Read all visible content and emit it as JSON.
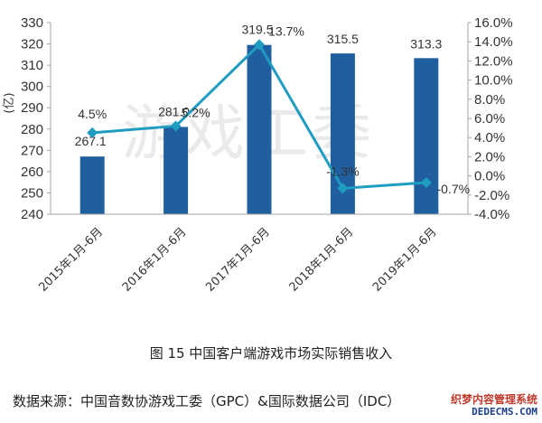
{
  "chart_data": {
    "type": "bar",
    "categories": [
      "2015年1月-6月",
      "2016年1月-6月",
      "2017年1月-6月",
      "2018年1月-6月",
      "2019年1月-6月"
    ],
    "series": [
      {
        "values": [
          267.1,
          281.0,
          319.5,
          315.5,
          313.3
        ],
        "labels": [
          "267.1",
          "281.0",
          "319.5",
          "315.5",
          "313.3"
        ],
        "axis": "left",
        "kind": "bar",
        "color": "#1f5fa0"
      },
      {
        "values": [
          4.5,
          5.2,
          13.7,
          -1.3,
          -0.7
        ],
        "labels": [
          "4.5%",
          "5.2%",
          "13.7%",
          "-1.3%",
          "-0.7%"
        ],
        "axis": "right",
        "kind": "line",
        "color": "#1f9cc0"
      }
    ],
    "ylabel": "(亿)",
    "ylim": [
      240,
      330
    ],
    "yticks": [
      "240",
      "250",
      "260",
      "270",
      "280",
      "290",
      "300",
      "310",
      "320",
      "330"
    ],
    "y2lim": [
      -4,
      16
    ],
    "y2ticks": [
      "-4.0%",
      "-2.0%",
      "0.0%",
      "2.0%",
      "4.0%",
      "6.0%",
      "8.0%",
      "10.0%",
      "12.0%",
      "14.0%",
      "16.0%"
    ],
    "watermark": "游戏工委",
    "legend": "none",
    "grid": false
  },
  "caption": "图 15  中国客户端游戏市场实际销售收入",
  "source": "数据来源：中国音数协游戏工委（GPC）&国际数据公司（IDC）",
  "badge": {
    "line1": "织梦内容管理系统",
    "line2": "DEDECMS.COM"
  }
}
